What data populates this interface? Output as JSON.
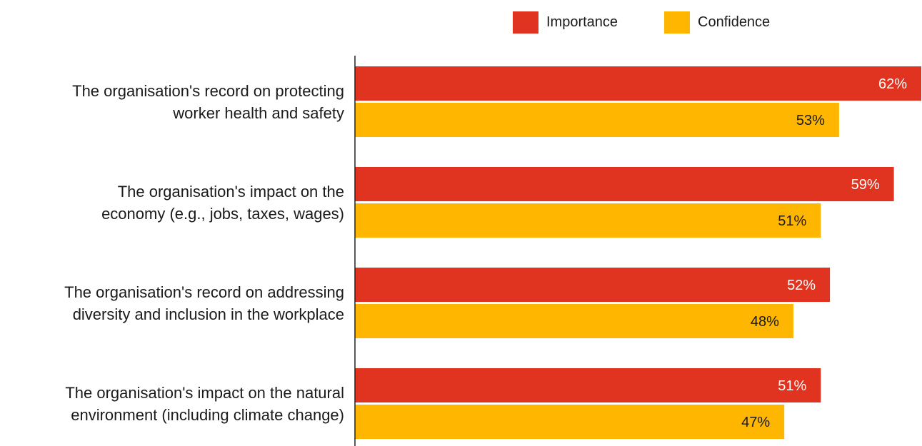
{
  "chart_data": {
    "type": "bar",
    "orientation": "horizontal",
    "categories": [
      [
        "The organisation's record on protecting",
        "worker health and safety"
      ],
      [
        "The organisation's impact on the",
        "economy (e.g., jobs, taxes, wages)"
      ],
      [
        "The organisation's record on addressing",
        "diversity and inclusion in the workplace"
      ],
      [
        "The organisation's impact on the natural",
        "environment (including climate change)"
      ]
    ],
    "series": [
      {
        "name": "Importance",
        "color": "#e03420",
        "label_color": "#ffffff",
        "values": [
          62,
          59,
          52,
          51
        ],
        "labels": [
          "62%",
          "59%",
          "52%",
          "51%"
        ]
      },
      {
        "name": "Confidence",
        "color": "#ffb600",
        "label_color": "#1a1a1a",
        "values": [
          53,
          51,
          48,
          47
        ],
        "labels": [
          "53%",
          "51%",
          "48%",
          "47%"
        ]
      }
    ],
    "xlim": [
      0,
      62
    ],
    "grid": false,
    "legend_position": "top-right",
    "title": "",
    "xlabel": "",
    "ylabel": ""
  }
}
